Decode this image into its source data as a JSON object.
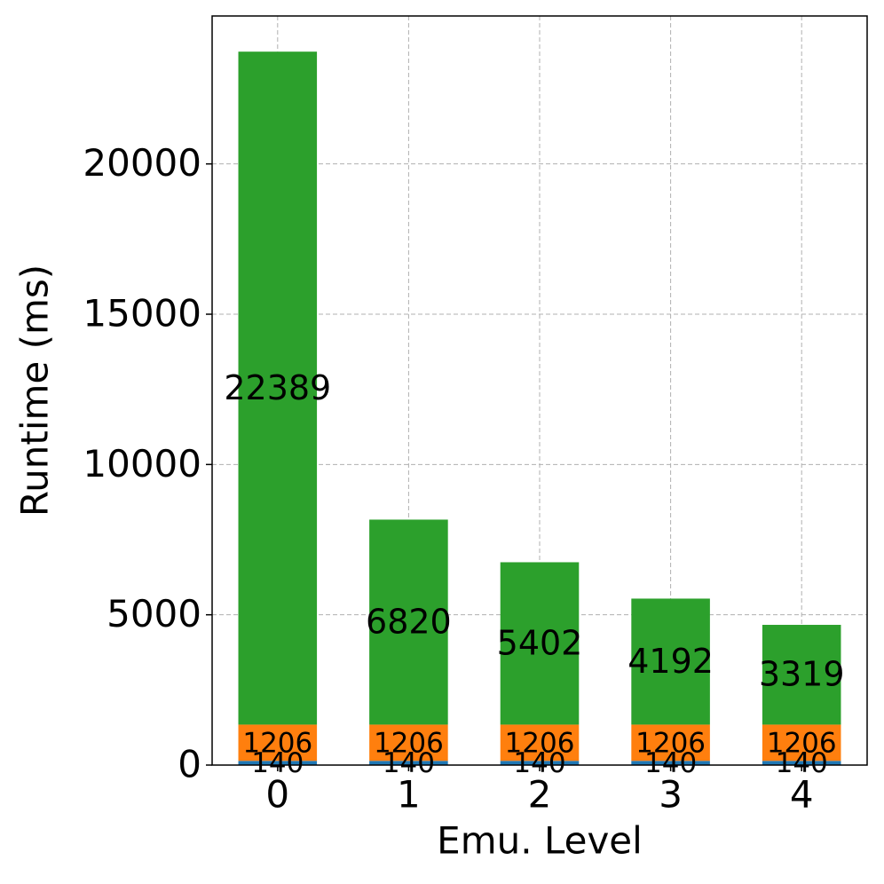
{
  "chart_data": {
    "type": "stacked_bar",
    "xlabel": "Emu. Level",
    "ylabel": "Runtime (ms)",
    "categories": [
      "0",
      "1",
      "2",
      "3",
      "4"
    ],
    "series": [
      {
        "color": "#1f77b4",
        "values": [
          140,
          140,
          140,
          140,
          140
        ]
      },
      {
        "color": "#ff7f0e",
        "values": [
          1206,
          1206,
          1206,
          1206,
          1206
        ]
      },
      {
        "color": "#2ca02c",
        "values": [
          22389,
          6820,
          5402,
          4192,
          3319
        ]
      }
    ],
    "ylim": [
      0,
      24922
    ],
    "yticks": [
      0,
      5000,
      10000,
      15000,
      20000
    ],
    "grid": true
  }
}
